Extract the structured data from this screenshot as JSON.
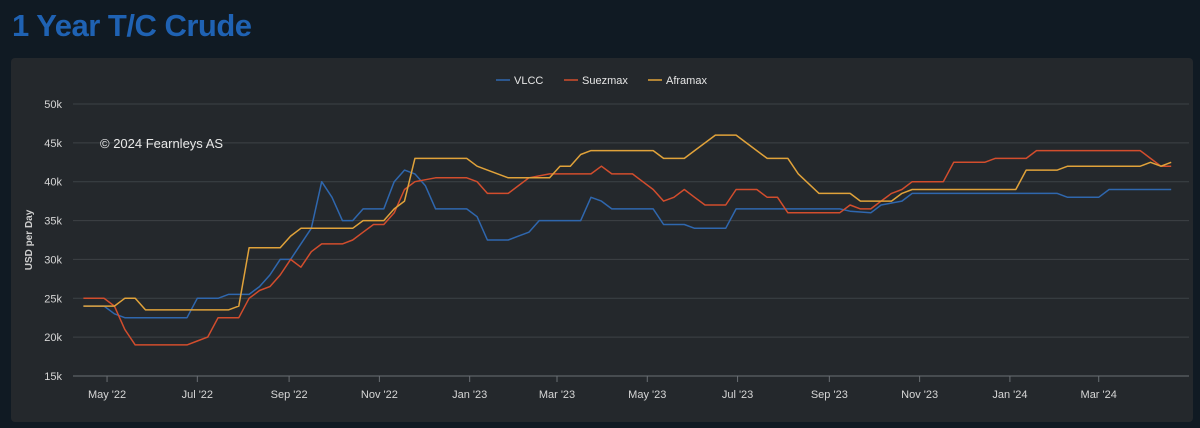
{
  "header": {
    "title": "1 Year T/C Crude"
  },
  "chart_data": {
    "type": "line",
    "credit": "© 2024 Fearnleys AS",
    "ylabel": "USD per Day",
    "ylim": [
      15000,
      50000
    ],
    "y_ticks": [
      {
        "value": 50000,
        "label": "50k"
      },
      {
        "value": 45000,
        "label": "45k"
      },
      {
        "value": 40000,
        "label": "40k"
      },
      {
        "value": 35000,
        "label": "35k"
      },
      {
        "value": 30000,
        "label": "30k"
      },
      {
        "value": 25000,
        "label": "25k"
      },
      {
        "value": 20000,
        "label": "20k"
      },
      {
        "value": 15000,
        "label": "15k"
      }
    ],
    "xlim": [
      "2022-04-08",
      "2024-05-01"
    ],
    "x_ticks": [
      {
        "date": "2022-05-01",
        "label": "May '22"
      },
      {
        "date": "2022-07-01",
        "label": "Jul '22"
      },
      {
        "date": "2022-09-01",
        "label": "Sep '22"
      },
      {
        "date": "2022-11-01",
        "label": "Nov '22"
      },
      {
        "date": "2023-01-01",
        "label": "Jan '23"
      },
      {
        "date": "2023-03-01",
        "label": "Mar '23"
      },
      {
        "date": "2023-05-01",
        "label": "May '23"
      },
      {
        "date": "2023-07-01",
        "label": "Jul '23"
      },
      {
        "date": "2023-09-01",
        "label": "Sep '23"
      },
      {
        "date": "2023-11-01",
        "label": "Nov '23"
      },
      {
        "date": "2024-01-01",
        "label": "Jan '24"
      },
      {
        "date": "2024-03-01",
        "label": "Mar '24"
      }
    ],
    "legend_position": "top-center",
    "grid": true,
    "series": [
      {
        "name": "VLCC",
        "color": "#2f67ae",
        "points": [
          [
            "2022-04-15",
            24000
          ],
          [
            "2022-04-29",
            24000
          ],
          [
            "2022-05-06",
            23000
          ],
          [
            "2022-05-13",
            22500
          ],
          [
            "2022-06-17",
            22500
          ],
          [
            "2022-06-24",
            22500
          ],
          [
            "2022-07-01",
            25000
          ],
          [
            "2022-07-15",
            25000
          ],
          [
            "2022-07-22",
            25500
          ],
          [
            "2022-08-05",
            25500
          ],
          [
            "2022-08-12",
            26500
          ],
          [
            "2022-08-19",
            28000
          ],
          [
            "2022-08-26",
            30000
          ],
          [
            "2022-09-02",
            30000
          ],
          [
            "2022-09-09",
            32000
          ],
          [
            "2022-09-16",
            34000
          ],
          [
            "2022-09-23",
            40000
          ],
          [
            "2022-09-30",
            38000
          ],
          [
            "2022-10-07",
            35000
          ],
          [
            "2022-10-14",
            35000
          ],
          [
            "2022-10-21",
            36500
          ],
          [
            "2022-11-04",
            36500
          ],
          [
            "2022-11-11",
            40000
          ],
          [
            "2022-11-18",
            41500
          ],
          [
            "2022-11-25",
            41000
          ],
          [
            "2022-12-02",
            39500
          ],
          [
            "2022-12-09",
            36500
          ],
          [
            "2022-12-30",
            36500
          ],
          [
            "2023-01-06",
            35500
          ],
          [
            "2023-01-13",
            32500
          ],
          [
            "2023-01-27",
            32500
          ],
          [
            "2023-02-03",
            33000
          ],
          [
            "2023-02-10",
            33500
          ],
          [
            "2023-02-17",
            35000
          ],
          [
            "2023-03-17",
            35000
          ],
          [
            "2023-03-24",
            38000
          ],
          [
            "2023-03-31",
            37500
          ],
          [
            "2023-04-07",
            36500
          ],
          [
            "2023-05-05",
            36500
          ],
          [
            "2023-05-12",
            34500
          ],
          [
            "2023-05-26",
            34500
          ],
          [
            "2023-06-02",
            34000
          ],
          [
            "2023-06-23",
            34000
          ],
          [
            "2023-06-30",
            36500
          ],
          [
            "2023-08-25",
            36500
          ],
          [
            "2023-09-08",
            36500
          ],
          [
            "2023-09-15",
            36200
          ],
          [
            "2023-09-29",
            36000
          ],
          [
            "2023-10-06",
            37000
          ],
          [
            "2023-10-20",
            37500
          ],
          [
            "2023-10-27",
            38500
          ],
          [
            "2024-02-02",
            38500
          ],
          [
            "2024-02-09",
            38000
          ],
          [
            "2024-02-23",
            38000
          ],
          [
            "2024-03-01",
            38000
          ],
          [
            "2024-03-08",
            39000
          ],
          [
            "2024-04-19",
            39000
          ]
        ]
      },
      {
        "name": "Suezmax",
        "color": "#d24d2d",
        "points": [
          [
            "2022-04-15",
            25000
          ],
          [
            "2022-04-29",
            25000
          ],
          [
            "2022-05-06",
            24000
          ],
          [
            "2022-05-13",
            21000
          ],
          [
            "2022-05-20",
            19000
          ],
          [
            "2022-06-24",
            19000
          ],
          [
            "2022-07-01",
            19500
          ],
          [
            "2022-07-08",
            20000
          ],
          [
            "2022-07-15",
            22500
          ],
          [
            "2022-07-29",
            22500
          ],
          [
            "2022-08-05",
            25000
          ],
          [
            "2022-08-12",
            26000
          ],
          [
            "2022-08-19",
            26500
          ],
          [
            "2022-08-26",
            28000
          ],
          [
            "2022-09-02",
            30000
          ],
          [
            "2022-09-09",
            29000
          ],
          [
            "2022-09-16",
            31000
          ],
          [
            "2022-09-23",
            32000
          ],
          [
            "2022-10-07",
            32000
          ],
          [
            "2022-10-14",
            32500
          ],
          [
            "2022-10-21",
            33500
          ],
          [
            "2022-10-28",
            34500
          ],
          [
            "2022-11-04",
            34500
          ],
          [
            "2022-11-11",
            36000
          ],
          [
            "2022-11-18",
            39000
          ],
          [
            "2022-11-25",
            40000
          ],
          [
            "2022-12-09",
            40500
          ],
          [
            "2022-12-30",
            40500
          ],
          [
            "2023-01-06",
            40000
          ],
          [
            "2023-01-13",
            38500
          ],
          [
            "2023-01-27",
            38500
          ],
          [
            "2023-02-03",
            39500
          ],
          [
            "2023-02-10",
            40500
          ],
          [
            "2023-02-24",
            41000
          ],
          [
            "2023-03-24",
            41000
          ],
          [
            "2023-03-31",
            42000
          ],
          [
            "2023-04-07",
            41000
          ],
          [
            "2023-04-21",
            41000
          ],
          [
            "2023-04-28",
            40000
          ],
          [
            "2023-05-05",
            39000
          ],
          [
            "2023-05-12",
            37500
          ],
          [
            "2023-05-19",
            38000
          ],
          [
            "2023-05-26",
            39000
          ],
          [
            "2023-06-02",
            38000
          ],
          [
            "2023-06-09",
            37000
          ],
          [
            "2023-06-23",
            37000
          ],
          [
            "2023-06-30",
            39000
          ],
          [
            "2023-07-14",
            39000
          ],
          [
            "2023-07-21",
            38000
          ],
          [
            "2023-07-28",
            38000
          ],
          [
            "2023-08-04",
            36000
          ],
          [
            "2023-08-25",
            36000
          ],
          [
            "2023-09-08",
            36000
          ],
          [
            "2023-09-15",
            37000
          ],
          [
            "2023-09-22",
            36500
          ],
          [
            "2023-09-29",
            36500
          ],
          [
            "2023-10-06",
            37500
          ],
          [
            "2023-10-13",
            38500
          ],
          [
            "2023-10-20",
            39000
          ],
          [
            "2023-10-27",
            40000
          ],
          [
            "2023-11-17",
            40000
          ],
          [
            "2023-11-24",
            42500
          ],
          [
            "2023-12-15",
            42500
          ],
          [
            "2023-12-22",
            43000
          ],
          [
            "2024-01-12",
            43000
          ],
          [
            "2024-01-19",
            44000
          ],
          [
            "2024-03-29",
            44000
          ],
          [
            "2024-04-05",
            43000
          ],
          [
            "2024-04-12",
            42000
          ],
          [
            "2024-04-19",
            42000
          ]
        ]
      },
      {
        "name": "Aframax",
        "color": "#e0a23a",
        "points": [
          [
            "2022-04-15",
            24000
          ],
          [
            "2022-05-06",
            24000
          ],
          [
            "2022-05-13",
            25000
          ],
          [
            "2022-05-20",
            25000
          ],
          [
            "2022-05-27",
            23500
          ],
          [
            "2022-07-22",
            23500
          ],
          [
            "2022-07-29",
            24000
          ],
          [
            "2022-08-05",
            31500
          ],
          [
            "2022-08-26",
            31500
          ],
          [
            "2022-09-02",
            33000
          ],
          [
            "2022-09-09",
            34000
          ],
          [
            "2022-10-14",
            34000
          ],
          [
            "2022-10-21",
            35000
          ],
          [
            "2022-11-04",
            35000
          ],
          [
            "2022-11-11",
            36500
          ],
          [
            "2022-11-18",
            37500
          ],
          [
            "2022-11-25",
            43000
          ],
          [
            "2022-12-30",
            43000
          ],
          [
            "2023-01-06",
            42000
          ],
          [
            "2023-01-13",
            41500
          ],
          [
            "2023-01-27",
            40500
          ],
          [
            "2023-02-24",
            40500
          ],
          [
            "2023-03-03",
            42000
          ],
          [
            "2023-03-10",
            42000
          ],
          [
            "2023-03-17",
            43500
          ],
          [
            "2023-03-24",
            44000
          ],
          [
            "2023-05-05",
            44000
          ],
          [
            "2023-05-12",
            43000
          ],
          [
            "2023-05-26",
            43000
          ],
          [
            "2023-06-02",
            44000
          ],
          [
            "2023-06-09",
            45000
          ],
          [
            "2023-06-16",
            46000
          ],
          [
            "2023-06-30",
            46000
          ],
          [
            "2023-07-07",
            45000
          ],
          [
            "2023-07-21",
            43000
          ],
          [
            "2023-08-04",
            43000
          ],
          [
            "2023-08-11",
            41000
          ],
          [
            "2023-08-25",
            38500
          ],
          [
            "2023-09-15",
            38500
          ],
          [
            "2023-09-22",
            37500
          ],
          [
            "2023-10-13",
            37500
          ],
          [
            "2023-10-20",
            38500
          ],
          [
            "2023-10-27",
            39000
          ],
          [
            "2023-12-15",
            39000
          ],
          [
            "2024-01-05",
            39000
          ],
          [
            "2024-01-12",
            41500
          ],
          [
            "2024-02-02",
            41500
          ],
          [
            "2024-02-09",
            42000
          ],
          [
            "2024-03-29",
            42000
          ],
          [
            "2024-04-05",
            42500
          ],
          [
            "2024-04-12",
            42000
          ],
          [
            "2024-04-19",
            42500
          ]
        ]
      }
    ]
  }
}
